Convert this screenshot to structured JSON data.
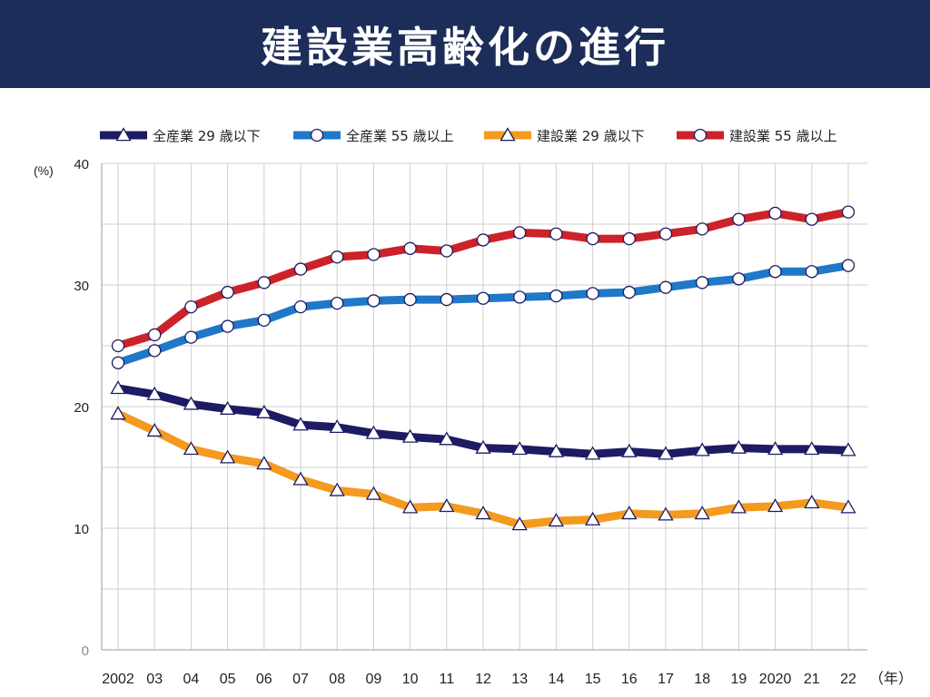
{
  "title": "建設業高齢化の進行",
  "chart_data": {
    "type": "line",
    "title": "建設業高齢化の進行",
    "ylabel": "(%)",
    "xunit": "（年）",
    "ylim": [
      0,
      40
    ],
    "yticks": [
      "0",
      "10",
      "20",
      "30",
      "40"
    ],
    "categories": [
      "2002",
      "03",
      "04",
      "05",
      "06",
      "07",
      "08",
      "09",
      "10",
      "11",
      "12",
      "13",
      "14",
      "15",
      "16",
      "17",
      "18",
      "19",
      "2020",
      "21",
      "22"
    ],
    "grid": true,
    "legend_position": "top",
    "series": [
      {
        "name": "全産業 29 歳以下",
        "color": "#1d1b63",
        "marker": "triangle",
        "values": [
          21.5,
          21.0,
          20.2,
          19.8,
          19.5,
          18.5,
          18.3,
          17.8,
          17.5,
          17.3,
          16.6,
          16.5,
          16.3,
          16.1,
          16.3,
          16.1,
          16.4,
          16.6,
          16.5,
          16.5,
          16.4
        ]
      },
      {
        "name": "全産業 55 歳以上",
        "color": "#1f78c8",
        "marker": "circle",
        "values": [
          23.6,
          24.6,
          25.7,
          26.6,
          27.1,
          28.2,
          28.5,
          28.7,
          28.8,
          28.8,
          28.9,
          29.0,
          29.1,
          29.3,
          29.4,
          29.8,
          30.2,
          30.5,
          31.1,
          31.1,
          31.6
        ]
      },
      {
        "name": "建設業 29 歳以下",
        "color": "#f39a1f",
        "marker": "triangle",
        "values": [
          19.4,
          18.0,
          16.5,
          15.8,
          15.3,
          14.0,
          13.1,
          12.8,
          11.7,
          11.8,
          11.2,
          10.3,
          10.6,
          10.7,
          11.2,
          11.1,
          11.2,
          11.7,
          11.8,
          12.1,
          11.7
        ]
      },
      {
        "name": "建設業 55 歳以上",
        "color": "#cc2229",
        "marker": "circle",
        "values": [
          25.0,
          25.9,
          28.2,
          29.4,
          30.2,
          31.3,
          32.3,
          32.5,
          33.0,
          32.8,
          33.7,
          34.3,
          34.2,
          33.8,
          33.8,
          34.2,
          34.6,
          35.4,
          35.9,
          35.4,
          36.0
        ]
      }
    ]
  }
}
